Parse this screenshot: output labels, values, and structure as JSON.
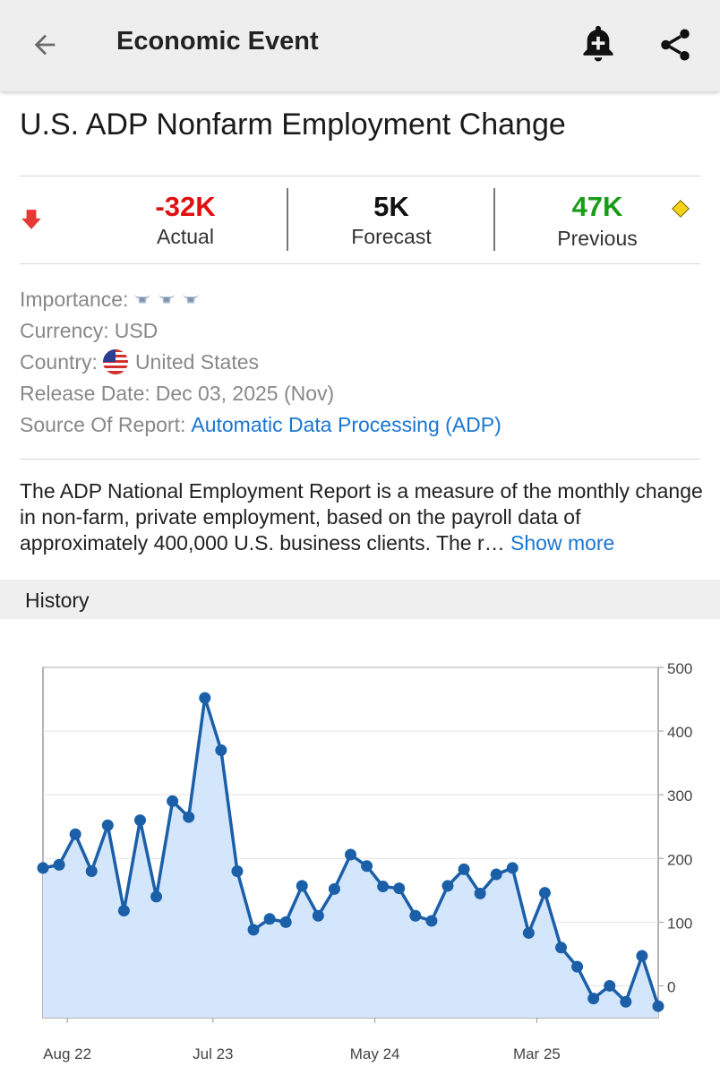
{
  "header": {
    "title": "Economic Event",
    "back_icon": "arrow-left-icon",
    "alert_icon": "bell-plus-icon",
    "share_icon": "share-icon"
  },
  "event": {
    "title": "U.S. ADP Nonfarm Employment Change"
  },
  "stats": {
    "actual_value": "-32K",
    "actual_label": "Actual",
    "forecast_value": "5K",
    "forecast_label": "Forecast",
    "previous_value": "47K",
    "previous_label": "Previous",
    "colors": {
      "actual": "#e01010",
      "forecast": "#111111",
      "previous": "#1a9c1a",
      "down_arrow": "#e53935"
    }
  },
  "info": {
    "importance_label": "Importance:",
    "importance_level": 3,
    "currency_label": "Currency:",
    "currency_value": "USD",
    "country_label": "Country:",
    "country_value": "United States",
    "release_label": "Release Date:",
    "release_value": "Dec 03, 2025 (Nov)",
    "source_label": "Source Of Report:",
    "source_value": "Automatic Data Processing (ADP)"
  },
  "description": {
    "text": "The ADP National Employment Report is a measure of the monthly change in non-farm, private employment, based on the payroll data of approximately 400,000 U.S. business clients. The r…",
    "more_label": "Show more"
  },
  "history": {
    "label": "History"
  },
  "chart_data": {
    "type": "area",
    "title": "",
    "xlabel": "",
    "ylabel": "",
    "x_tick_labels": [
      "Aug 22",
      "Jul 23",
      "May 24",
      "Mar 25"
    ],
    "x_tick_indices": [
      1.5,
      10.5,
      20.5,
      30.5
    ],
    "y_ticks": [
      0,
      100,
      200,
      300,
      400,
      500
    ],
    "ylim": [
      -50,
      500
    ],
    "y_axis_side": "right",
    "grid": true,
    "line_color": "#1a5fa8",
    "fill_color": "#d4e6fb",
    "series": [
      {
        "values": [
          185,
          190,
          238,
          180,
          252,
          118,
          260,
          140,
          290,
          265,
          452,
          370,
          180,
          88,
          105,
          100,
          157,
          110,
          152,
          206,
          188,
          156,
          153,
          110,
          102,
          157,
          183,
          145,
          175,
          185,
          83,
          146,
          60,
          30,
          -20,
          0,
          -25,
          47,
          -32
        ]
      }
    ]
  }
}
